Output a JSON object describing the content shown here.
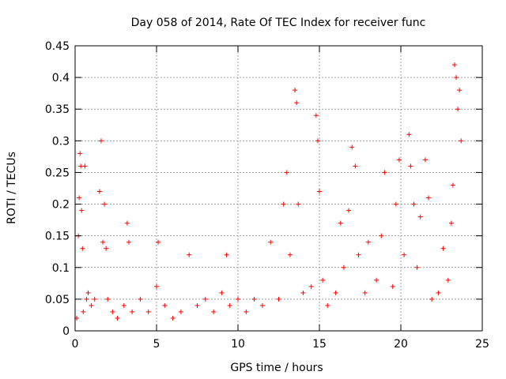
{
  "chart_data": {
    "type": "scatter",
    "title": "Day 058 of 2014, Rate Of TEC Index for receiver func",
    "xlabel": "GPS time / hours",
    "ylabel": "ROTI / TECUs",
    "xlim": [
      0,
      25
    ],
    "ylim": [
      0,
      0.45
    ],
    "xticks": [
      "0",
      "5",
      "10",
      "15",
      "20",
      "25"
    ],
    "yticks": [
      "0",
      "0.05",
      "0.1",
      "0.15",
      "0.2",
      "0.25",
      "0.3",
      "0.35",
      "0.4",
      "0.45"
    ],
    "grid": true,
    "marker": "plus",
    "series": [
      {
        "name": "ROTI",
        "color": "#ff0000",
        "x": [
          0.1,
          0.2,
          0.25,
          0.3,
          0.35,
          0.4,
          0.45,
          0.5,
          0.6,
          0.7,
          0.8,
          1.0,
          1.2,
          1.5,
          1.6,
          1.7,
          1.8,
          1.9,
          2.0,
          2.3,
          2.6,
          3.0,
          3.2,
          3.3,
          3.5,
          4.0,
          4.5,
          5.0,
          5.1,
          5.5,
          6.0,
          6.5,
          7.0,
          7.5,
          8.0,
          8.5,
          9.0,
          9.3,
          9.5,
          10.0,
          10.5,
          11.0,
          11.5,
          12.0,
          12.5,
          12.8,
          13.0,
          13.2,
          13.5,
          13.6,
          13.7,
          14.0,
          14.5,
          14.8,
          14.9,
          15.0,
          15.2,
          15.5,
          16.0,
          16.3,
          16.5,
          16.8,
          17.0,
          17.2,
          17.4,
          17.8,
          18.0,
          18.5,
          18.8,
          19.0,
          19.5,
          19.7,
          19.9,
          20.2,
          20.5,
          20.6,
          20.8,
          21.0,
          21.2,
          21.5,
          21.7,
          21.9,
          22.3,
          22.6,
          22.9,
          23.1,
          23.2,
          23.3,
          23.4,
          23.5,
          23.6,
          23.7
        ],
        "y": [
          0.02,
          0.15,
          0.21,
          0.28,
          0.26,
          0.19,
          0.13,
          0.03,
          0.26,
          0.05,
          0.06,
          0.04,
          0.05,
          0.22,
          0.3,
          0.14,
          0.2,
          0.13,
          0.05,
          0.03,
          0.02,
          0.04,
          0.17,
          0.14,
          0.03,
          0.05,
          0.03,
          0.07,
          0.14,
          0.04,
          0.02,
          0.03,
          0.12,
          0.04,
          0.05,
          0.03,
          0.06,
          0.12,
          0.04,
          0.05,
          0.03,
          0.05,
          0.04,
          0.14,
          0.05,
          0.2,
          0.25,
          0.12,
          0.38,
          0.36,
          0.2,
          0.06,
          0.07,
          0.34,
          0.3,
          0.22,
          0.08,
          0.04,
          0.06,
          0.17,
          0.1,
          0.19,
          0.29,
          0.26,
          0.12,
          0.06,
          0.14,
          0.08,
          0.15,
          0.25,
          0.07,
          0.2,
          0.27,
          0.12,
          0.31,
          0.26,
          0.2,
          0.1,
          0.18,
          0.27,
          0.21,
          0.05,
          0.06,
          0.13,
          0.08,
          0.17,
          0.23,
          0.42,
          0.4,
          0.35,
          0.38,
          0.3
        ]
      }
    ]
  }
}
